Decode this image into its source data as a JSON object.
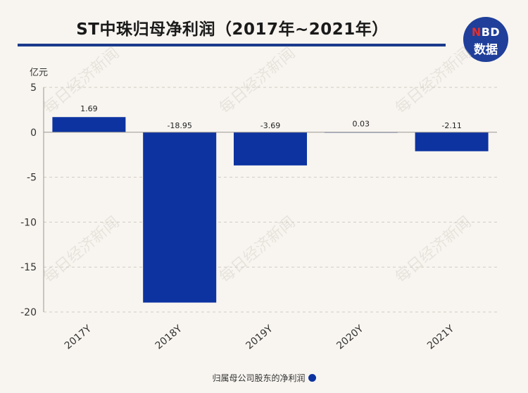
{
  "header": {
    "title": "ST中珠归母净利润（2017年~2021年）"
  },
  "logo": {
    "brand_n": "N",
    "brand_bd": "BD",
    "sub": "数据"
  },
  "watermark": "每日经济新闻",
  "chart_data": {
    "type": "bar",
    "title": "ST中珠归母净利润（2017年~2021年）",
    "ylabel": "亿元",
    "xlabel": "",
    "categories": [
      "2017Y",
      "2018Y",
      "2019Y",
      "2020Y",
      "2021Y"
    ],
    "series": [
      {
        "name": "归属母公司股东的净利润",
        "values": [
          1.69,
          -18.95,
          -3.69,
          0.03,
          -2.11
        ],
        "labels": [
          "1.69",
          "-18.95",
          "-3.69",
          "0.03",
          "-2.11"
        ],
        "color": "#0d33a0"
      }
    ],
    "ylim": [
      -20,
      5
    ],
    "yticks": [
      5,
      0,
      -5,
      -10,
      -15,
      -20
    ],
    "ytick_labels": [
      "5",
      "0",
      "-5",
      "-10",
      "-15",
      "-20"
    ],
    "grid": true,
    "legend_position": "bottom-center"
  }
}
